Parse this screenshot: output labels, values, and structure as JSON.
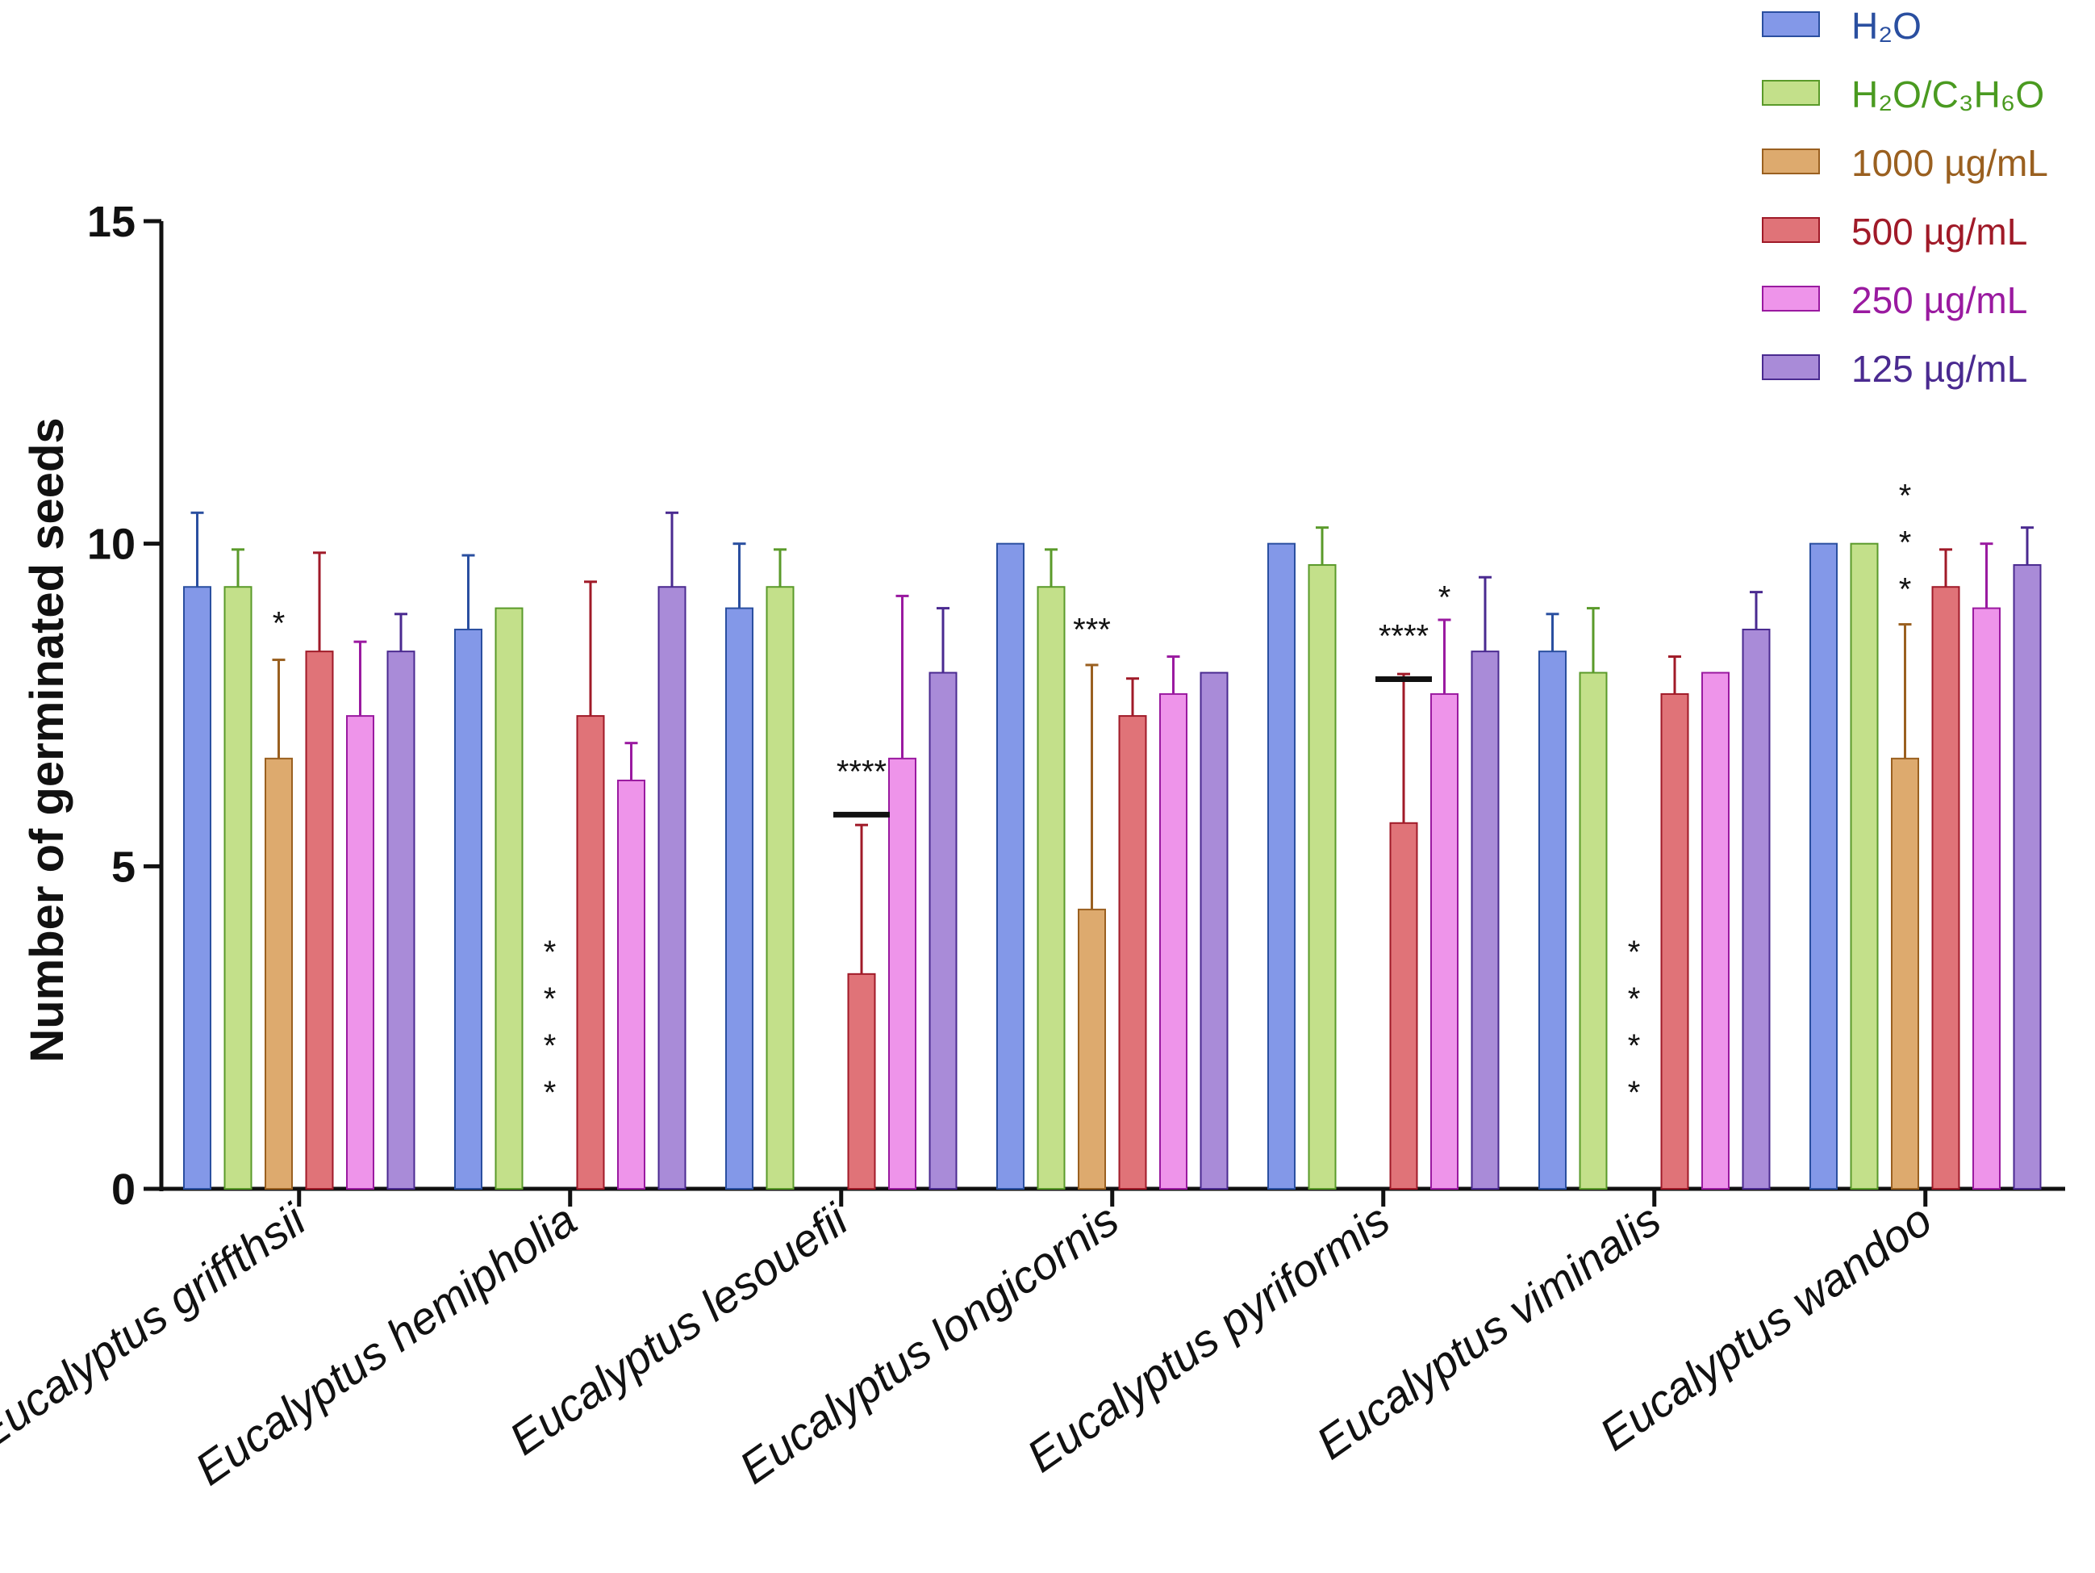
{
  "chart_data": {
    "type": "bar",
    "ylabel": "Number of germinated seeds",
    "xlabel": "",
    "ylim": [
      0,
      15
    ],
    "yticks": [
      0,
      5,
      10,
      15
    ],
    "legend_position": "top-right",
    "categories": [
      "Eucalyptus griffthsii",
      "Eucalyptus hemipholia",
      "Eucalyptus lesouefii",
      "Eucalyptus longicornis",
      "Eucalyptus pyriformis",
      "Eucalyptus viminalis",
      "Eucalyptus wandoo"
    ],
    "series": [
      {
        "name": "H₂O",
        "fill": "#8398e8",
        "stroke": "#2a4fa0",
        "values": [
          9.33,
          8.67,
          9.0,
          10.0,
          10.0,
          8.33,
          10.0
        ],
        "errors": [
          1.15,
          1.15,
          1.0,
          0,
          0,
          0.58,
          0
        ]
      },
      {
        "name": "H₂O/C₃H₆O",
        "fill": "#c3e08a",
        "stroke": "#5a9a2a",
        "values": [
          9.33,
          9.0,
          9.33,
          9.33,
          9.67,
          8.0,
          10.0
        ],
        "errors": [
          0.58,
          0,
          0.58,
          0.58,
          0.58,
          1.0,
          0
        ]
      },
      {
        "name": "1000 µg/mL",
        "fill": "#ddaa6e",
        "stroke": "#9a6020",
        "values": [
          6.67,
          0,
          0,
          4.33,
          0,
          0,
          6.67
        ],
        "errors": [
          1.53,
          0,
          0,
          3.79,
          0,
          0,
          2.08
        ]
      },
      {
        "name": "500 µg/mL",
        "fill": "#e07378",
        "stroke": "#a01a28",
        "values": [
          8.33,
          7.33,
          3.33,
          7.33,
          5.67,
          7.67,
          9.33
        ],
        "errors": [
          1.53,
          2.08,
          2.31,
          0.58,
          2.31,
          0.58,
          0.58
        ]
      },
      {
        "name": "250 µg/mL",
        "fill": "#ee94ea",
        "stroke": "#9a1aa0",
        "values": [
          7.33,
          6.33,
          6.67,
          7.67,
          7.67,
          8.0,
          9.0
        ],
        "errors": [
          1.15,
          0.58,
          2.52,
          0.58,
          1.15,
          0,
          1.0
        ]
      },
      {
        "name": "125 µg/mL",
        "fill": "#a98bd8",
        "stroke": "#4a2a90",
        "values": [
          8.33,
          9.33,
          8.0,
          8.0,
          8.33,
          8.67,
          9.67
        ],
        "errors": [
          0.58,
          1.15,
          1.0,
          0,
          1.15,
          0.58,
          0.58
        ]
      }
    ],
    "legend_colors": [
      "#2a4fa0",
      "#4a9a20",
      "#9a6020",
      "#a01a28",
      "#9a1aa0",
      "#4a2a90"
    ],
    "annotations": [
      {
        "category": 0,
        "series": 2,
        "text": "*",
        "value": 8.6,
        "style": "inline"
      },
      {
        "category": 1,
        "series": 2,
        "text": "****",
        "value": 1.5,
        "style": "vertical"
      },
      {
        "category": 2,
        "series": 3,
        "text": "****",
        "value": 6.3,
        "style": "inline",
        "bar_line": true
      },
      {
        "category": 3,
        "series": 2,
        "text": "***",
        "value": 8.5,
        "style": "inline"
      },
      {
        "category": 4,
        "series": 4,
        "text": "*",
        "value": 9.0,
        "style": "inline"
      },
      {
        "category": 4,
        "series": 3,
        "text": "****",
        "value": 8.4,
        "style": "inline",
        "bar_line": true
      },
      {
        "category": 5,
        "series": 2,
        "text": "****",
        "value": 1.5,
        "style": "vertical"
      },
      {
        "category": 6,
        "series": 2,
        "text": "***",
        "value": 9.3,
        "style": "vertical"
      }
    ]
  }
}
